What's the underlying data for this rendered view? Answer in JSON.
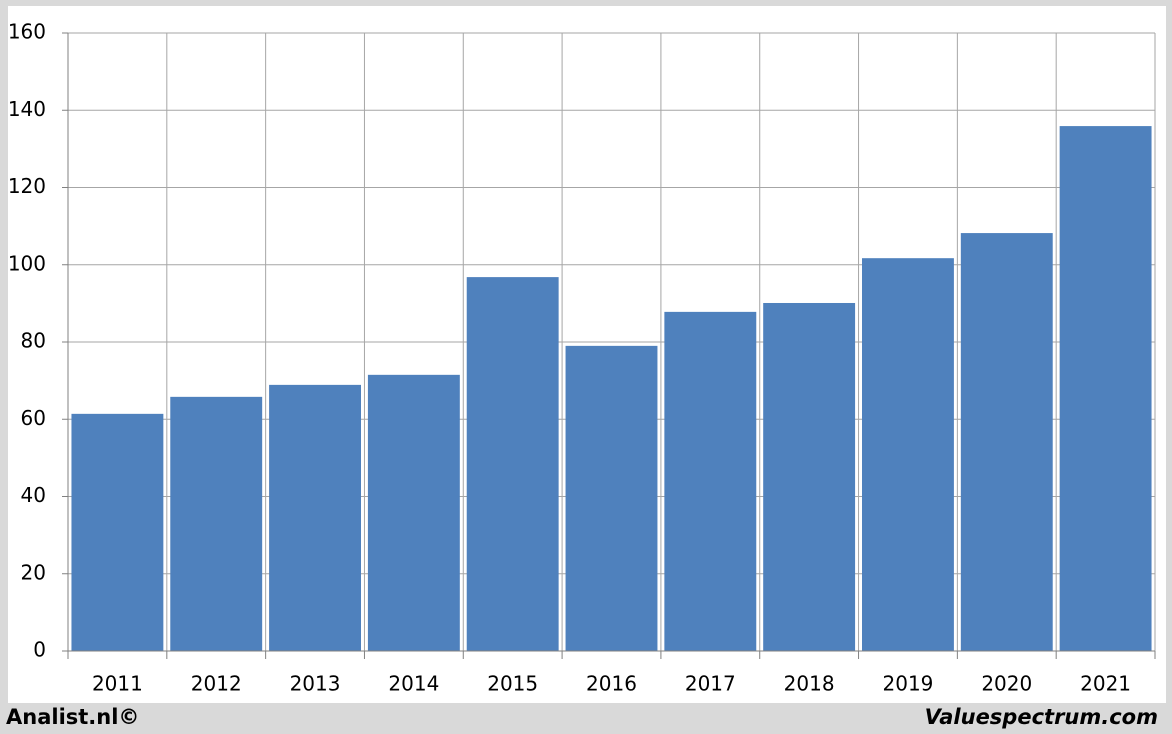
{
  "chart_data": {
    "type": "bar",
    "categories": [
      "2011",
      "2012",
      "2013",
      "2014",
      "2015",
      "2016",
      "2017",
      "2018",
      "2019",
      "2020",
      "2021"
    ],
    "values": [
      61.4,
      65.8,
      68.9,
      71.5,
      96.8,
      79.0,
      87.8,
      90.1,
      101.7,
      108.2,
      135.9
    ],
    "color": "#4f81bd",
    "ylim": [
      0,
      160
    ],
    "yticks": [
      0,
      20,
      40,
      60,
      80,
      100,
      120,
      140,
      160
    ],
    "grid": true
  },
  "footer": {
    "left": "Analist.nl©",
    "right": "Valuespectrum.com"
  }
}
